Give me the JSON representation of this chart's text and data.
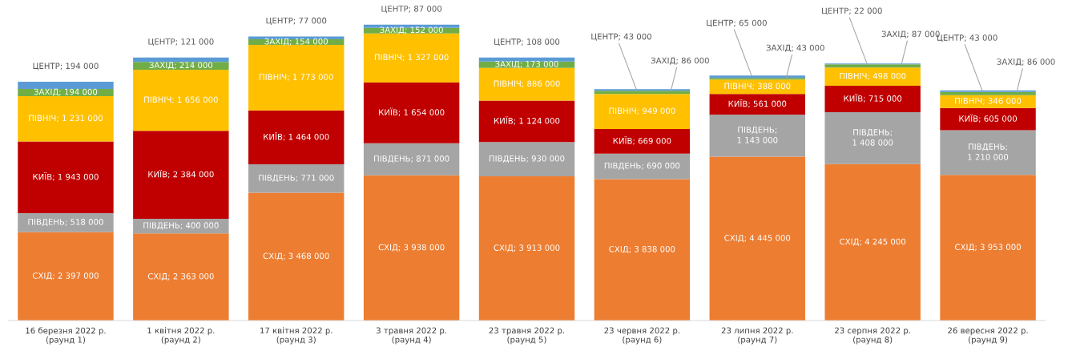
{
  "chart_data": {
    "type": "bar",
    "stacked": true,
    "categories": [
      "16 березня 2022 р.\n(раунд 1)",
      "1 квітня 2022 р.\n(раунд 2)",
      "17 квітня 2022 р.\n(раунд 3)",
      "3 травня 2022 р.\n(раунд 4)",
      "23 травня 2022 р.\n(раунд 5)",
      "23 червня 2022 р.\n(раунд 6)",
      "23 липня 2022 р.\n(раунд 7)",
      "23 серпня 2022 р.\n(раунд 8)",
      "26 вересня 2022 р.\n(раунд 9)"
    ],
    "series": [
      {
        "color": "#ed7d31",
        "values": [
          2397000,
          2363000,
          3468000,
          3938000,
          3913000,
          3838000,
          4445000,
          4245000,
          3953000
        ],
        "value_labels": [
          "СХІД; 2 397 000",
          "СХІД; 2 363 000",
          "СХІД; 3 468 000",
          "СХІД; 3 938 000",
          "СХІД; 3 913 000",
          "СХІД; 3 838 000",
          "СХІД; 4 445 000",
          "СХІД; 4 245 000",
          "СХІД; 3 953 000"
        ]
      },
      {
        "color": "#a5a5a5",
        "values": [
          518000,
          400000,
          771000,
          871000,
          930000,
          690000,
          1143000,
          1408000,
          1210000
        ],
        "value_labels": [
          "ПІВДЕНЬ; 518 000",
          "ПІВДЕНЬ; 400 000",
          "ПІВДЕНЬ; 771 000",
          "ПІВДЕНЬ; 871 000",
          "ПІВДЕНЬ; 930 000",
          "ПІВДЕНЬ; 690 000",
          "ПІВДЕНЬ;\n1 143 000",
          "ПІВДЕНЬ;\n1 408 000",
          "ПІВДЕНЬ;\n1 210 000"
        ]
      },
      {
        "color": "#c00000",
        "values": [
          1943000,
          2384000,
          1464000,
          1654000,
          1124000,
          669000,
          561000,
          715000,
          605000
        ],
        "value_labels": [
          "КИЇВ; 1 943 000",
          "КИЇВ; 2 384 000",
          "КИЇВ; 1 464 000",
          "КИЇВ; 1 654 000",
          "КИЇВ; 1 124 000",
          "КИЇВ; 669 000",
          "КИЇВ; 561 000",
          "КИЇВ; 715 000",
          "КИЇВ; 605 000"
        ]
      },
      {
        "color": "#ffc000",
        "values": [
          1231000,
          1656000,
          1773000,
          1327000,
          886000,
          949000,
          388000,
          498000,
          346000
        ],
        "value_labels": [
          "ПІВНІЧ; 1 231 000",
          "ПІВНІЧ; 1 656 000",
          "ПІВНІЧ; 1 773 000",
          "ПІВНІЧ; 1 327 000",
          "ПІВНІЧ; 886 000",
          "ПІВНІЧ; 949 000",
          "ПІВНІЧ; 388 000",
          "ПІВНІЧ; 498 000",
          "ПІВНІЧ; 346 000"
        ]
      },
      {
        "color": "#70ad47",
        "values": [
          194000,
          214000,
          154000,
          152000,
          173000,
          86000,
          43000,
          87000,
          86000
        ],
        "value_labels": [
          "ЗАХІД; 194 000",
          "ЗАХІД; 214 000",
          "ЗАХІД; 154 000",
          "ЗАХІД; 152 000",
          "ЗАХІД; 173 000",
          "ЗАХІД; 86 000",
          "ЗАХІД; 43 000",
          "ЗАХІД; 87 000",
          "ЗАХІД; 86 000"
        ]
      },
      {
        "color": "#5b9bd5",
        "values": [
          194000,
          121000,
          77000,
          87000,
          108000,
          43000,
          65000,
          22000,
          43000
        ],
        "value_labels": [
          "ЦЕНТР; 194 000",
          "ЦЕНТР; 121 000",
          "ЦЕНТР; 77 000",
          "ЦЕНТР; 87 000",
          "ЦЕНТР; 108 000",
          "ЦЕНТР; 43 000",
          "ЦЕНТР; 65 000",
          "ЦЕНТР; 22 000",
          "ЦЕНТР; 43 000"
        ]
      }
    ]
  }
}
